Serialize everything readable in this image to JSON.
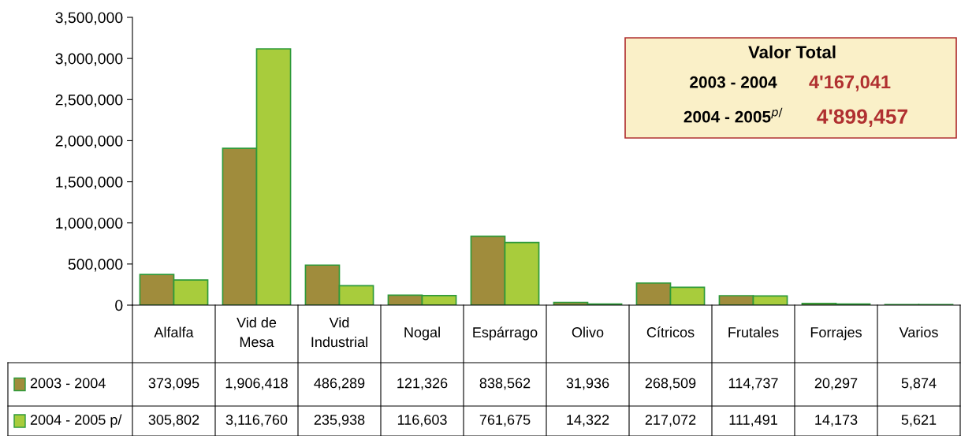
{
  "chart_data": {
    "type": "bar",
    "categories": [
      "Alfalfa",
      "Vid de\nMesa",
      "Vid\nIndustrial",
      "Nogal",
      "Espárrago",
      "Olivo",
      "Cítricos",
      "Frutales",
      "Forrajes",
      "Varios"
    ],
    "series": [
      {
        "name": "2003 - 2004",
        "color": "#a08c3c",
        "values": [
          373095,
          1906418,
          486289,
          121326,
          838562,
          31936,
          268509,
          114737,
          20297,
          5874
        ],
        "value_labels": [
          "373,095",
          "1,906,418",
          "486,289",
          "121,326",
          "838,562",
          "31,936",
          "268,509",
          "114,737",
          "20,297",
          "5,874"
        ]
      },
      {
        "name": "2004 - 2005 p/",
        "color": "#a8cc3c",
        "values": [
          305802,
          3116760,
          235938,
          116603,
          761675,
          14322,
          217072,
          111491,
          14173,
          5621
        ],
        "value_labels": [
          "305,802",
          "3,116,760",
          "235,938",
          "116,603",
          "761,675",
          "14,322",
          "217,072",
          "111,491",
          "14,173",
          "5,621"
        ]
      }
    ],
    "ylim": [
      0,
      3500000
    ],
    "yticks": [
      0,
      {
        "value": 500000,
        "label": "500,000"
      },
      {
        "value": 1000000,
        "label": "1,000,000"
      },
      {
        "value": 1500000,
        "label": "1,500,000"
      },
      {
        "value": 2000000,
        "label": "2,000,000"
      },
      {
        "value": 2500000,
        "label": "2,500,000"
      },
      {
        "value": 3000000,
        "label": "3,000,000"
      },
      {
        "value": 3500000,
        "label": "3,500,000"
      }
    ],
    "legend": "bottom",
    "grid": false,
    "annotations": [
      "Valor Total",
      "2003 - 2004",
      "4'167,041",
      "2004 - 2005$^{p/}$",
      "4'899,457"
    ]
  }
}
